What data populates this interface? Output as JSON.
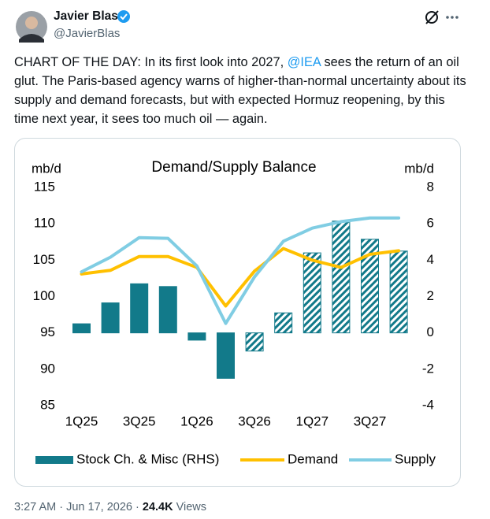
{
  "author": {
    "name": "Javier Blas",
    "handle": "@JavierBlas"
  },
  "text": {
    "before": "CHART OF THE DAY: In its first look into 2027, ",
    "mention": "@IEA",
    "after": " sees the return of an oil glut. The Paris-based agency warns of higher-than-normal uncertainty about its  supply and demand forecasts, but with expected Hormuz reopening, by this time next year, it sees too much oil — again."
  },
  "footer": {
    "time": "3:27 AM",
    "separator": "·",
    "date": "Jun 17, 2026",
    "views": "24.4K",
    "views_label": "Views"
  },
  "chart_data": {
    "type": "bar-line",
    "title": "Demand/Supply Balance",
    "y_label": "mb/d",
    "y2_label": "mb/d",
    "categories": [
      "1Q25",
      null,
      "3Q25",
      null,
      "1Q26",
      null,
      "3Q26",
      null,
      "1Q27",
      null,
      "3Q27",
      null
    ],
    "series": [
      {
        "name": "Stock Ch. & Misc (RHS)",
        "type": "bar",
        "axis": "y2",
        "color": "#127a8a",
        "values": [
          0.5,
          1.65,
          2.7,
          2.55,
          -0.4,
          -2.5,
          -1.0,
          1.1,
          4.4,
          6.15,
          5.15,
          4.5
        ],
        "hatched": [
          false,
          false,
          false,
          false,
          false,
          false,
          true,
          true,
          true,
          true,
          true,
          true
        ]
      },
      {
        "name": "Demand",
        "type": "line",
        "color": "#ffc000",
        "values": [
          103.1,
          103.6,
          105.5,
          105.5,
          104.0,
          98.7,
          103.5,
          106.6,
          105.0,
          104.0,
          105.8,
          106.3
        ]
      },
      {
        "name": "Supply",
        "type": "line",
        "color": "#80cde3",
        "values": [
          103.4,
          105.4,
          108.1,
          108.0,
          104.2,
          96.3,
          102.7,
          107.6,
          109.4,
          110.3,
          110.8,
          110.8
        ]
      }
    ],
    "ylim": [
      85,
      115
    ],
    "yticks": [
      85,
      90,
      95,
      100,
      105,
      110,
      115
    ],
    "y2lim": [
      -4,
      8
    ],
    "y2ticks": [
      -4,
      -2,
      0,
      2,
      4,
      6,
      8
    ],
    "grid": false,
    "legend": "bottom"
  }
}
